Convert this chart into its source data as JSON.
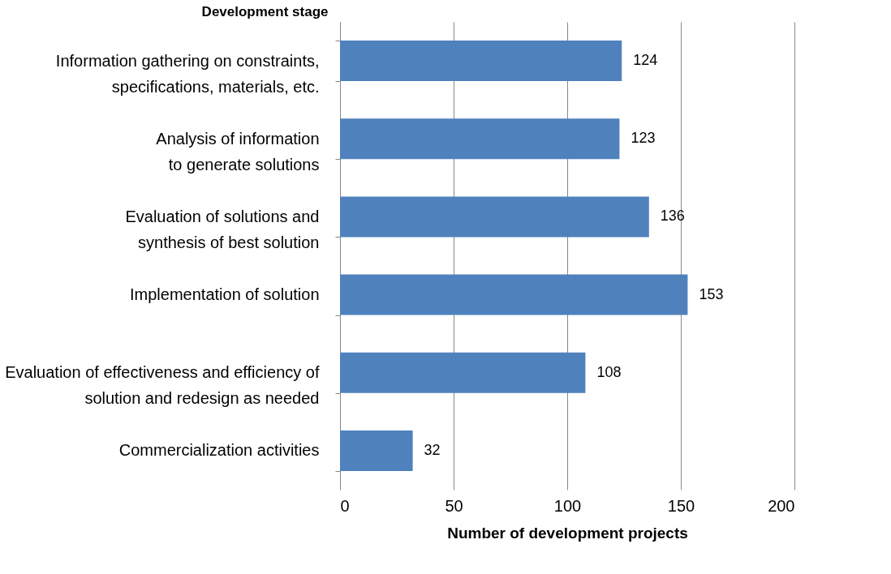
{
  "chart_data": {
    "type": "bar",
    "orientation": "horizontal",
    "xlabel": "Number of development projects",
    "ylabel": "Development stage",
    "categories": [
      "Information gathering on constraints,\nspecifications, materials, etc.",
      "Analysis of information\nto generate solutions",
      "Evaluation of solutions and\nsynthesis of best solution",
      "Implementation of solution",
      "Evaluation of effectiveness and efficiency of\nsolution and redesign as needed",
      "Commercialization activities"
    ],
    "values": [
      124,
      123,
      136,
      153,
      108,
      32
    ],
    "color": "#4f81bd",
    "xlim": [
      0,
      200
    ],
    "xticks": [
      0,
      50,
      100,
      150,
      200
    ],
    "grid": "x",
    "data_labels": true
  }
}
